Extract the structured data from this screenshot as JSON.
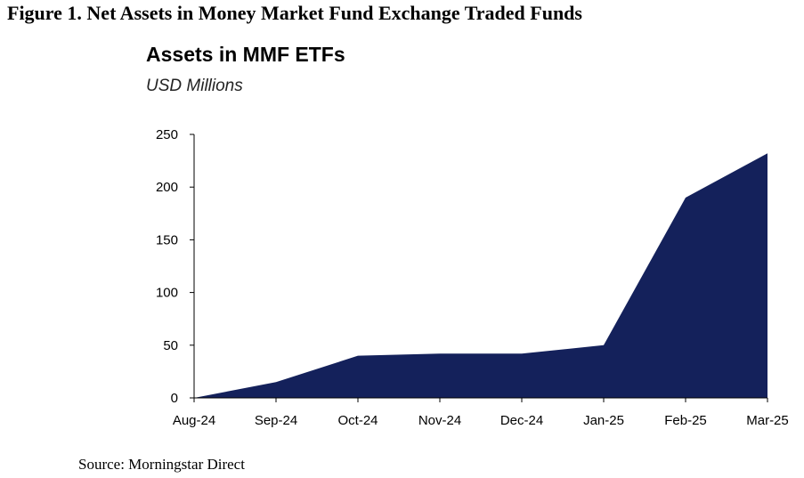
{
  "figure_title": "Figure 1. Net Assets in Money Market Fund Exchange Traded Funds",
  "source": "Source: Morningstar Direct",
  "chart_data": {
    "type": "area",
    "title": "Assets in MMF ETFs",
    "subtitle": "USD Millions",
    "categories": [
      "Aug-24",
      "Sep-24",
      "Oct-24",
      "Nov-24",
      "Dec-24",
      "Jan-25",
      "Feb-25",
      "Mar-25"
    ],
    "series": [
      {
        "name": "Assets in MMF ETFs",
        "values": [
          0,
          15,
          40,
          42,
          42,
          50,
          190,
          232
        ]
      }
    ],
    "yticks": [
      0,
      50,
      100,
      150,
      200,
      250
    ],
    "ylim": [
      0,
      250
    ],
    "xlabel": "",
    "ylabel": "",
    "grid": false,
    "fill_color": "#14215B",
    "axis_color": "#000000"
  }
}
